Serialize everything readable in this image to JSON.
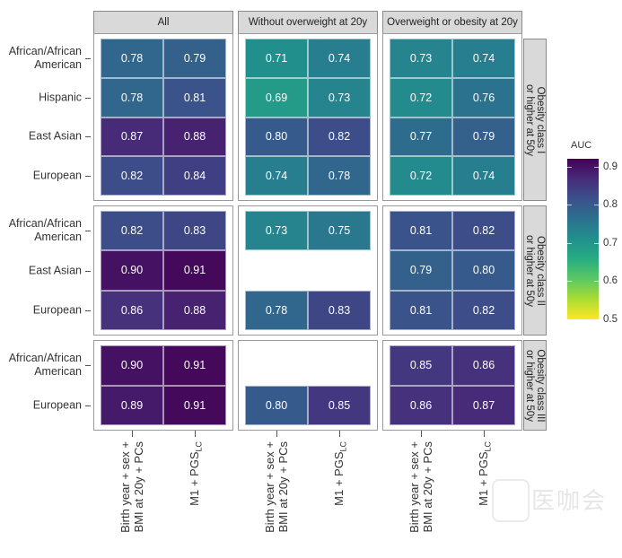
{
  "chart_data": {
    "type": "heatmap",
    "legend": {
      "title": "AUC",
      "ticks": [
        "0.5",
        "0.6",
        "0.7",
        "0.8",
        "0.9"
      ],
      "range": [
        0.5,
        0.92
      ],
      "colormap": "viridis (reversed: high = dark purple)",
      "placement": "right"
    },
    "column_panels": [
      "All",
      "Without overweight at 20y",
      "Overweight or obesity at 20y"
    ],
    "x_categories": [
      {
        "line1": "Birth year + sex +",
        "line2": "BMI at 20y + PCs"
      },
      {
        "line1": "M1 + PGS",
        "sub": "LC"
      }
    ],
    "row_facets": [
      {
        "label": "Obesity class I\nor higher at 50y",
        "rows": [
          {
            "name": "African/African\nAmerican",
            "values": [
              [
                0.78,
                0.79
              ],
              [
                0.71,
                0.74
              ],
              [
                0.73,
                0.74
              ]
            ]
          },
          {
            "name": "Hispanic",
            "values": [
              [
                0.78,
                0.81
              ],
              [
                0.69,
                0.73
              ],
              [
                0.72,
                0.76
              ]
            ]
          },
          {
            "name": "East Asian",
            "values": [
              [
                0.87,
                0.88
              ],
              [
                0.8,
                0.82
              ],
              [
                0.77,
                0.79
              ]
            ]
          },
          {
            "name": "European",
            "values": [
              [
                0.82,
                0.84
              ],
              [
                0.74,
                0.78
              ],
              [
                0.72,
                0.74
              ]
            ]
          }
        ]
      },
      {
        "label": "Obesity class II\nor higher at 50y",
        "rows": [
          {
            "name": "African/African\nAmerican",
            "values": [
              [
                0.82,
                0.83
              ],
              [
                0.73,
                0.75
              ],
              [
                0.81,
                0.82
              ]
            ]
          },
          {
            "name": "East Asian",
            "values": [
              [
                0.9,
                0.91
              ],
              null,
              [
                0.79,
                0.8
              ]
            ]
          },
          {
            "name": "European",
            "values": [
              [
                0.86,
                0.88
              ],
              [
                0.78,
                0.83
              ],
              [
                0.81,
                0.82
              ]
            ]
          }
        ]
      },
      {
        "label": "Obesity class III\nor higher at 50y",
        "rows": [
          {
            "name": "African/African\nAmerican",
            "values": [
              [
                0.9,
                0.91
              ],
              null,
              [
                0.85,
                0.86
              ]
            ]
          },
          {
            "name": "European",
            "values": [
              [
                0.89,
                0.91
              ],
              [
                0.8,
                0.85
              ],
              [
                0.86,
                0.87
              ]
            ]
          }
        ]
      }
    ]
  },
  "watermark": "医咖会"
}
